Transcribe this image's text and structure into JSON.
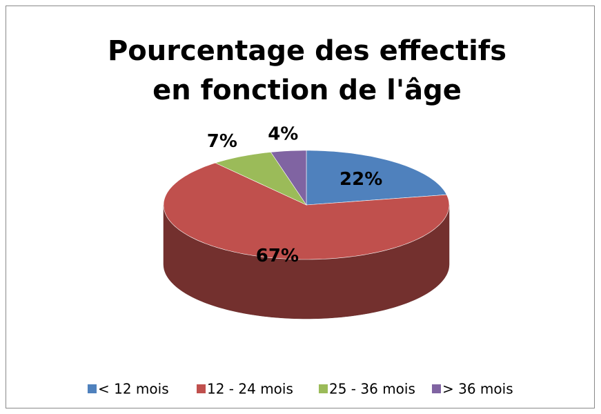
{
  "chart_data": {
    "type": "pie3d",
    "title": "Pourcentage des effectifs en fonction de l'âge",
    "categories": [
      "< 12 mois",
      "12 - 24 mois",
      "25 - 36 mois",
      "> 36 mois"
    ],
    "values": [
      22,
      67,
      7,
      4
    ],
    "value_labels": [
      "22%",
      "67%",
      "7%",
      "4%"
    ],
    "colors": [
      "#4f81bd",
      "#c0504d",
      "#9bbb59",
      "#8064a2"
    ],
    "legend": "bottom"
  }
}
